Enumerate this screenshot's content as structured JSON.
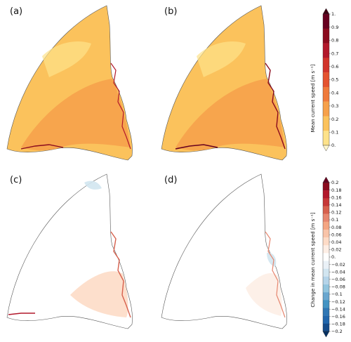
{
  "panels": [
    {
      "label": "(a)",
      "kind": "mean"
    },
    {
      "label": "(b)",
      "kind": "mean"
    },
    {
      "label": "(c)",
      "kind": "change"
    },
    {
      "label": "(d)",
      "kind": "change"
    }
  ],
  "colorbar_mean": {
    "title": "Mean current speed [m s⁻¹]",
    "ticks": [
      "1.",
      "0.9",
      "0.8",
      "0.7",
      "0.6",
      "0.5",
      "0.4",
      "0.3",
      "0.2",
      "0.1",
      "0."
    ],
    "colors": [
      "#3d0012",
      "#67001f",
      "#8b0b1e",
      "#b2182b",
      "#d1342b",
      "#e4532f",
      "#ef7a3b",
      "#f6a04a",
      "#fbc25c",
      "#fde28a",
      "#fff7cf"
    ]
  },
  "colorbar_change": {
    "title": "Change in mean current speed [m s⁻¹]",
    "ticks": [
      "0.2",
      "0.18",
      "0.16",
      "0.14",
      "0.12",
      "0.1",
      "0.08",
      "0.06",
      "0.04",
      "0.02",
      "0.",
      "−0.02",
      "−0.04",
      "−0.06",
      "−0.08",
      "−0.1",
      "−0.12",
      "−0.14",
      "−0.16",
      "−0.18",
      "−0.2"
    ],
    "colors": [
      "#67001f",
      "#8b0b1e",
      "#b2182b",
      "#c63737",
      "#d6604d",
      "#e6866f",
      "#f4a582",
      "#f9c4a9",
      "#fddbc7",
      "#fdeee5",
      "#ffffff",
      "#eaf1f7",
      "#d1e5f0",
      "#b5d4e9",
      "#92c5de",
      "#6aa7cf",
      "#4393c3",
      "#3077b4",
      "#2166ac",
      "#154c8a",
      "#053061"
    ]
  }
}
